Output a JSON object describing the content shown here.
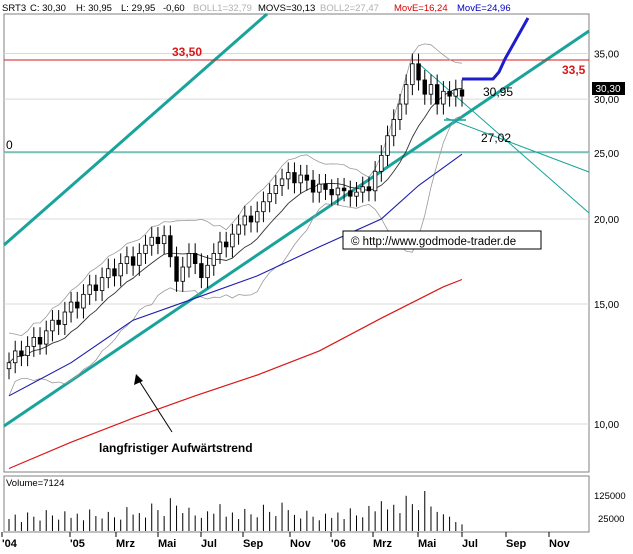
{
  "colors": {
    "background": "#ffffff",
    "grid": "#d9d9d9",
    "frame": "#808080",
    "candle": "#000000",
    "trendline": "#1aa39a",
    "thin_channel": "#1aa39a",
    "bollinger": "#9a9a9a",
    "ma_short": "#1d1dad",
    "ma_long": "#d81818",
    "resistance": "#d81818",
    "forecast": "#1d1dcc",
    "header_red": "#d80000",
    "header_blue": "#0000c0",
    "header_gray": "#b0b0b0",
    "volume": "#000000",
    "price_label_bg": "#000000",
    "price_label_fg": "#ffffff"
  },
  "header": {
    "symbol": "SRT3",
    "c": "C: 30,30",
    "h": "H: 30,95",
    "l": "L: 29,95",
    "chg": "-0,60",
    "boll1": "BOLL1=32,79",
    "movs": "MOVS=30,13",
    "boll2": "BOLL2=27,47",
    "move1": "MovE=16,24",
    "move2": "MovE=24,96"
  },
  "annotations": {
    "resistance_left": "33,50",
    "resistance_right": "33,5",
    "left_zero": "0",
    "level_high": "30,95",
    "level_low": "27,02",
    "copyright": "© http://www.godmode-trader.de",
    "trend_label": "langfristiger Aufwärtstrend",
    "volume_label": "Volume=7124",
    "last_price": "30,30"
  },
  "chart_data": {
    "type": "candlestick",
    "title": "",
    "y_scale": "log",
    "ylim": [
      8.5,
      40
    ],
    "y_ticks": [
      "35,00",
      "30,00",
      "25,00",
      "20,00",
      "15,00",
      "10,00"
    ],
    "x_ticks": [
      "'04",
      "'05",
      "Mrz",
      "Mai",
      "Jul",
      "Sep",
      "Nov",
      "'06",
      "Mrz",
      "Mai",
      "Jul",
      "Sep",
      "Nov"
    ],
    "close_weekly": [
      12.3,
      12.8,
      12.6,
      13.0,
      13.4,
      13.1,
      13.7,
      14.2,
      14.0,
      14.6,
      15.1,
      14.8,
      15.5,
      16.0,
      15.7,
      16.4,
      16.9,
      16.5,
      17.2,
      17.6,
      17.1,
      17.8,
      18.3,
      18.8,
      18.4,
      18.9,
      17.6,
      16.2,
      17.0,
      17.8,
      17.2,
      16.4,
      17.1,
      17.8,
      18.5,
      18.2,
      19.0,
      19.6,
      20.2,
      19.8,
      20.5,
      21.2,
      21.8,
      22.4,
      22.9,
      23.4,
      22.6,
      23.2,
      22.8,
      21.9,
      22.5,
      22.1,
      21.7,
      22.2,
      22.0,
      21.6,
      21.9,
      22.3,
      22.0,
      23.5,
      24.8,
      26.5,
      28.0,
      29.5,
      31.5,
      33.8,
      32.0,
      30.5,
      31.5,
      29.5,
      30.8,
      30.3,
      30.95,
      30.3
    ],
    "ma_short": [
      {
        "x": 0,
        "y": 11.0
      },
      {
        "x": 10,
        "y": 12.3
      },
      {
        "x": 20,
        "y": 14.2
      },
      {
        "x": 30,
        "y": 15.3
      },
      {
        "x": 40,
        "y": 16.5
      },
      {
        "x": 50,
        "y": 18.2
      },
      {
        "x": 60,
        "y": 20.0
      },
      {
        "x": 66,
        "y": 22.4
      },
      {
        "x": 73,
        "y": 24.9
      }
    ],
    "ma_long": [
      {
        "x": 0,
        "y": 8.6
      },
      {
        "x": 10,
        "y": 9.4
      },
      {
        "x": 20,
        "y": 10.2
      },
      {
        "x": 30,
        "y": 11.0
      },
      {
        "x": 40,
        "y": 11.8
      },
      {
        "x": 50,
        "y": 12.8
      },
      {
        "x": 60,
        "y": 14.3
      },
      {
        "x": 70,
        "y": 15.9
      },
      {
        "x": 73,
        "y": 16.3
      }
    ],
    "resistance": 33.5,
    "level_high": 30.95,
    "level_low": 27.02,
    "support_line": 24.6,
    "volume_ticks": [
      "125000",
      "25000"
    ],
    "volume": [
      40,
      55,
      30,
      62,
      48,
      35,
      70,
      52,
      38,
      66,
      44,
      58,
      36,
      72,
      50,
      42,
      64,
      46,
      38,
      80,
      55,
      60,
      45,
      92,
      70,
      50,
      110,
      85,
      60,
      78,
      52,
      44,
      66,
      58,
      90,
      48,
      62,
      40,
      74,
      56,
      46,
      88,
      64,
      50,
      95,
      70,
      54,
      42,
      68,
      48,
      36,
      58,
      44,
      62,
      40,
      76,
      52,
      46,
      84,
      66,
      100,
      72,
      88,
      60,
      118,
      90,
      70,
      134,
      82,
      64,
      56,
      48,
      30,
      22
    ]
  }
}
